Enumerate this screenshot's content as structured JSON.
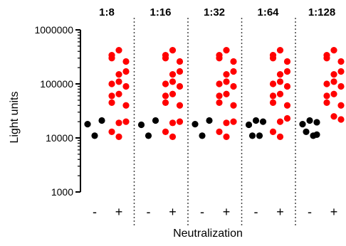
{
  "chart_data": {
    "type": "scatter",
    "title": "",
    "xlabel": "Neutralization",
    "ylabel": "Light units",
    "yscale": "log",
    "ylim": [
      1000,
      1000000
    ],
    "yticks": [
      1000,
      10000,
      100000,
      1000000
    ],
    "ytick_labels": [
      "1000",
      "10000",
      "100000",
      "1000000"
    ],
    "grid": false,
    "panel_separators": "dotted",
    "colors": {
      "-": "#000000",
      "+": "#ff0000"
    },
    "panels": [
      {
        "label": "1:8",
        "groups": [
          {
            "label": "-",
            "color": "#000000",
            "values": [
              18000,
              11000,
              21000
            ]
          },
          {
            "label": "+",
            "color": "#ff0000",
            "values": [
              340000,
              420000,
              260000,
              300000,
              150000,
              170000,
              100000,
              110000,
              90000,
              60000,
              65000,
              40000,
              45000,
              19000,
              20000,
              13000,
              10500
            ]
          }
        ]
      },
      {
        "label": "1:16",
        "groups": [
          {
            "label": "-",
            "color": "#000000",
            "values": [
              17500,
              11000,
              21000
            ]
          },
          {
            "label": "+",
            "color": "#ff0000",
            "values": [
              340000,
              420000,
              260000,
              300000,
              150000,
              170000,
              100000,
              110000,
              90000,
              60000,
              65000,
              40000,
              45000,
              19000,
              20000,
              13000,
              10500
            ]
          }
        ]
      },
      {
        "label": "1:32",
        "groups": [
          {
            "label": "-",
            "color": "#000000",
            "values": [
              18000,
              11000,
              21000
            ]
          },
          {
            "label": "+",
            "color": "#ff0000",
            "values": [
              340000,
              420000,
              260000,
              300000,
              150000,
              170000,
              100000,
              110000,
              90000,
              60000,
              65000,
              40000,
              45000,
              19000,
              20000,
              13000,
              10500
            ]
          }
        ]
      },
      {
        "label": "1:64",
        "groups": [
          {
            "label": "-",
            "color": "#000000",
            "values": [
              17500,
              21000,
              20000,
              11000,
              11000
            ]
          },
          {
            "label": "+",
            "color": "#ff0000",
            "values": [
              340000,
              420000,
              260000,
              300000,
              150000,
              170000,
              100000,
              110000,
              90000,
              60000,
              65000,
              40000,
              45000,
              20000,
              23000,
              13000,
              10500
            ]
          }
        ]
      },
      {
        "label": "1:128",
        "groups": [
          {
            "label": "-",
            "color": "#000000",
            "values": [
              18000,
              21000,
              19500,
              13000,
              11000,
              11500
            ]
          },
          {
            "label": "+",
            "color": "#ff0000",
            "values": [
              340000,
              420000,
              260000,
              300000,
              150000,
              170000,
              100000,
              110000,
              90000,
              60000,
              65000,
              40000,
              45000,
              25000,
              22000
            ]
          }
        ]
      }
    ]
  }
}
